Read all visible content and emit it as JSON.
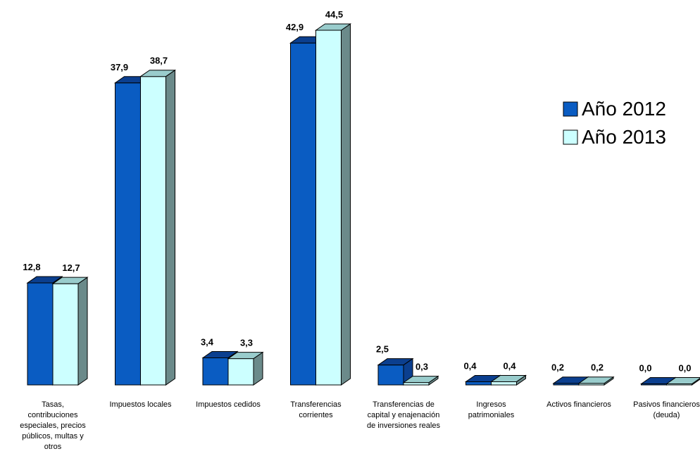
{
  "chart_data": {
    "type": "bar",
    "categories": [
      "Tasas, contribuciones especiales, precios públicos, multas y otros",
      "Impuestos locales",
      "Impuestos cedidos",
      "Transferencias corrientes",
      "Transferencias de capital y enajenación de inversiones reales",
      "Ingresos patrimoniales",
      "Activos financieros",
      "Pasivos financieros (deuda)"
    ],
    "category_lines": [
      [
        "Tasas,",
        "contribuciones",
        "especiales, precios",
        "públicos, multas y",
        "otros"
      ],
      [
        "Impuestos locales"
      ],
      [
        "Impuestos cedidos"
      ],
      [
        "Transferencias",
        "corrientes"
      ],
      [
        "Transferencias de",
        "capital y enajenación",
        "de inversiones reales"
      ],
      [
        "Ingresos",
        "patrimoniales"
      ],
      [
        "Activos financieros"
      ],
      [
        "Pasivos financieros",
        "(deuda)"
      ]
    ],
    "series": [
      {
        "name": "Año 2012",
        "values": [
          12.8,
          37.9,
          3.4,
          42.9,
          2.5,
          0.4,
          0.2,
          0.0
        ],
        "labels": [
          "12,8",
          "37,9",
          "3,4",
          "42,9",
          "2,5",
          "0,4",
          "0,2",
          "0,0"
        ],
        "color": "#0a5cc2",
        "top_color": "#0b3f8f",
        "side_color": "#0b3f8f"
      },
      {
        "name": "Año 2013",
        "values": [
          12.7,
          38.7,
          3.3,
          44.5,
          0.3,
          0.4,
          0.2,
          0.0
        ],
        "labels": [
          "12,7",
          "38,7",
          "3,3",
          "44,5",
          "0,3",
          "0,4",
          "0,2",
          "0,0"
        ],
        "color": "#ccffff",
        "top_color": "#99cccc",
        "side_color": "#6b8a8a"
      }
    ],
    "ylim": [
      0,
      44.5
    ],
    "grid": false,
    "legend_position": "right",
    "three_d": true
  }
}
